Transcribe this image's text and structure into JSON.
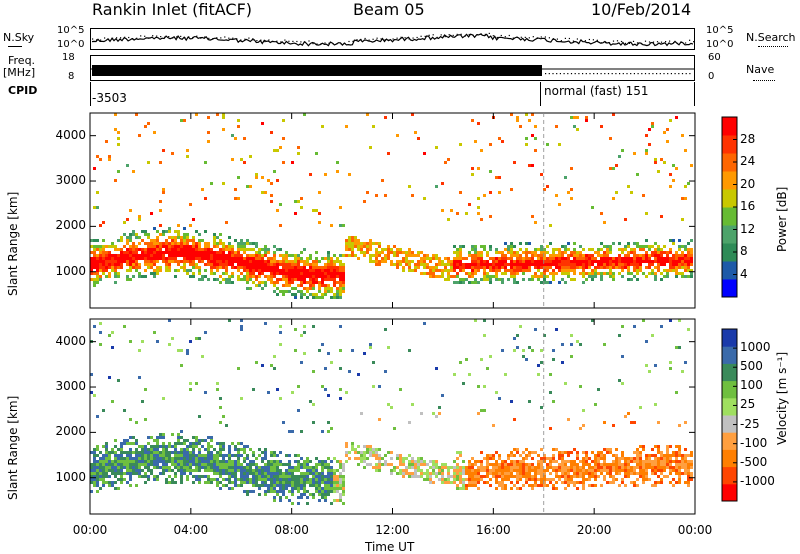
{
  "header": {
    "station": "Rankin Inlet (fitACF)",
    "beam": "Beam 05",
    "date": "10/Feb/2014"
  },
  "summary": {
    "nsky_label": "N.Sky",
    "nsearch_label": "N.Search",
    "noise_ticks": [
      "10^5",
      "10^0"
    ],
    "freq_label": "Freq.",
    "freq_unit": "[MHz]",
    "freq_ticks": [
      "18",
      "8"
    ],
    "nave_label": "Nave",
    "nave_ticks": [
      "60",
      "0"
    ],
    "cpid_label": "CPID",
    "cpid_left": "-3503",
    "cpid_right": "normal (fast) 151"
  },
  "colors": {
    "power_scale": [
      "#0000ff",
      "#1e5aa8",
      "#2e8b57",
      "#4da36a",
      "#66bb33",
      "#c8c800",
      "#ff9900",
      "#ff6600",
      "#ff3300",
      "#ff0000"
    ],
    "velocity_scale": [
      "#ff0000",
      "#ff4500",
      "#ff7f00",
      "#ff9f3f",
      "#c0c0c0",
      "#9fdf5f",
      "#6fbf3f",
      "#3a8a5a",
      "#3a6aaa",
      "#1a3aaa"
    ]
  },
  "chart_data": [
    {
      "type": "heatmap",
      "panel": "power",
      "xlabel": "Time UT",
      "ylabel": "Slant Range [km]",
      "xlim": [
        0,
        24
      ],
      "ylim": [
        200,
        4500
      ],
      "x_ticks": [
        "00:00",
        "04:00",
        "08:00",
        "12:00",
        "16:00",
        "20:00",
        "00:00"
      ],
      "y_ticks": [
        "1000",
        "2000",
        "3000",
        "4000"
      ],
      "colorbar_label": "Power [dB]",
      "colorbar_ticks": [
        "28",
        "24",
        "20",
        "16",
        "12",
        "8",
        "4"
      ],
      "colorbar_range": [
        0,
        30
      ]
    },
    {
      "type": "heatmap",
      "panel": "velocity",
      "xlabel": "Time UT",
      "ylabel": "Slant Range [km]",
      "xlim": [
        0,
        24
      ],
      "ylim": [
        200,
        4500
      ],
      "x_ticks": [
        "00:00",
        "04:00",
        "08:00",
        "12:00",
        "16:00",
        "20:00",
        "00:00"
      ],
      "y_ticks": [
        "1000",
        "2000",
        "3000",
        "4000"
      ],
      "colorbar_label": "Velocity [m s⁻¹]",
      "colorbar_ticks": [
        "1000",
        "500",
        "100",
        "25",
        "-25",
        "-100",
        "-500",
        "-1000"
      ],
      "colorbar_range": [
        -1000,
        1000
      ]
    }
  ]
}
